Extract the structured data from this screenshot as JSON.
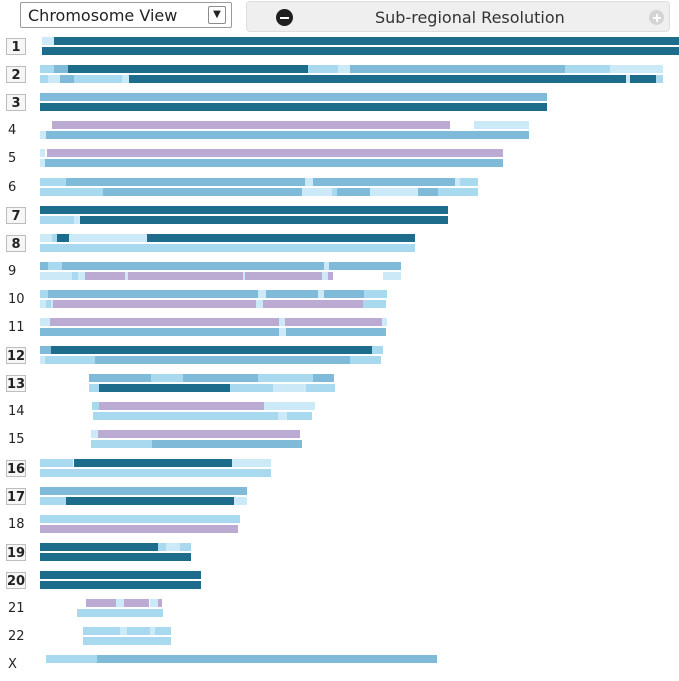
{
  "view_select": {
    "value": "Chromosome View"
  },
  "resolution": {
    "label": "Sub-regional Resolution",
    "decrease_icon": "minus-circle-icon",
    "increase_icon": "plus-circle-icon"
  },
  "colors": {
    "dark": "#1d6c8c",
    "mid": "#7fbbd8",
    "light": "#a9d9ee",
    "pale": "#cbe9f6",
    "purple": "#bbabd2"
  },
  "chromosomes": [
    {
      "name": "1",
      "selected": true
    },
    {
      "name": "2",
      "selected": true
    },
    {
      "name": "3",
      "selected": true
    },
    {
      "name": "4",
      "selected": false
    },
    {
      "name": "5",
      "selected": false
    },
    {
      "name": "6",
      "selected": false
    },
    {
      "name": "7",
      "selected": true
    },
    {
      "name": "8",
      "selected": true
    },
    {
      "name": "9",
      "selected": false
    },
    {
      "name": "10",
      "selected": false
    },
    {
      "name": "11",
      "selected": false
    },
    {
      "name": "12",
      "selected": true
    },
    {
      "name": "13",
      "selected": true
    },
    {
      "name": "14",
      "selected": false
    },
    {
      "name": "15",
      "selected": false
    },
    {
      "name": "16",
      "selected": true
    },
    {
      "name": "17",
      "selected": true
    },
    {
      "name": "18",
      "selected": false
    },
    {
      "name": "19",
      "selected": true
    },
    {
      "name": "20",
      "selected": true
    },
    {
      "name": "21",
      "selected": false
    },
    {
      "name": "22",
      "selected": false
    },
    {
      "name": "X",
      "selected": false
    }
  ]
}
